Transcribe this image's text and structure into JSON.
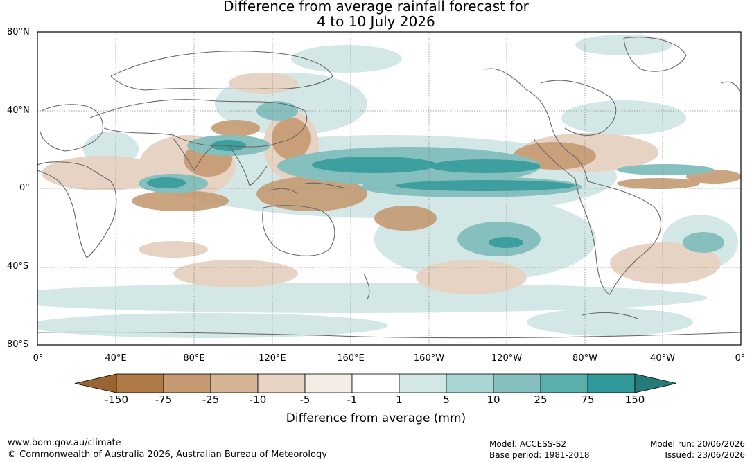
{
  "title_line1": "Difference from average rainfall forecast for",
  "title_line2": "4 to 10 July 2026",
  "lat_labels": [
    "80°N",
    "40°N",
    "0°",
    "40°S",
    "80°S"
  ],
  "lon_labels": [
    "0°",
    "40°E",
    "80°E",
    "120°E",
    "160°E",
    "160°W",
    "120°W",
    "80°W",
    "40°W",
    "0°"
  ],
  "colorbar": {
    "labels": [
      "-150",
      "-75",
      "-25",
      "-10",
      "-5",
      "-1",
      "1",
      "5",
      "10",
      "25",
      "75",
      "150"
    ],
    "colors": [
      "#9a6332",
      "#b07a46",
      "#c59a72",
      "#d5b496",
      "#e7d3c3",
      "#f3ede6",
      "#ffffff",
      "#d3e8e6",
      "#a8d4d1",
      "#86c0be",
      "#5aaeac",
      "#31999a",
      "#267a78"
    ],
    "title": "Difference from average (mm)"
  },
  "colors": {
    "dry": "#c59a72",
    "wet": "#5aaeac",
    "coast": "#666666"
  },
  "footer": {
    "url": "www.bom.gov.au/climate",
    "copyright": "© Commonwealth of Australia 2026, Australian Bureau of Meteorology",
    "model": "Model: ACCESS-S2",
    "base_period": "Base period: 1981-2018",
    "model_run": "Model run: 20/06/2026",
    "issued": "Issued: 23/06/2026"
  }
}
